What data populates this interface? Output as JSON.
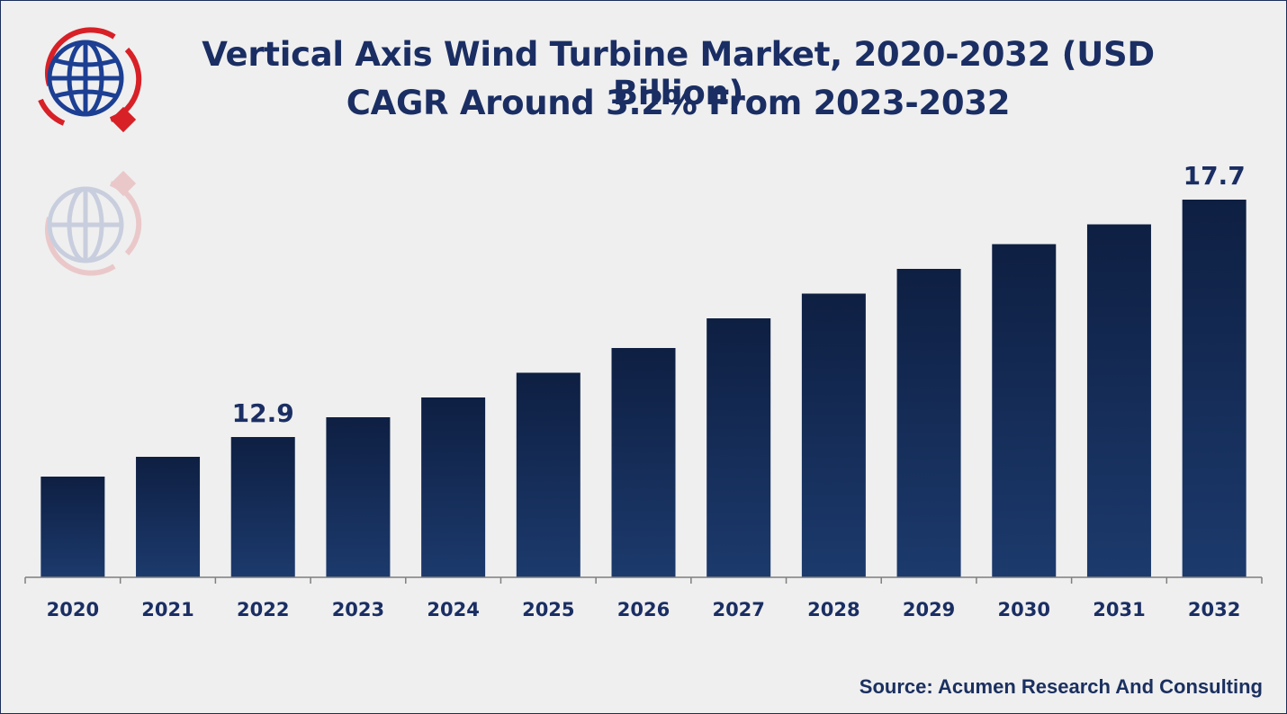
{
  "title_line1": "Vertical Axis Wind Turbine Market, 2020-2032  (USD Billion)",
  "title_line2": "CAGR Around 3.2% From 2023-2032",
  "source": "Source: Acumen Research And Consulting",
  "colors": {
    "bar_top": "#0e1f42",
    "bar_bottom": "#1c3a6d",
    "text_navy": "#1a2e63",
    "logo_red": "#d82027",
    "logo_blue": "#1c3f93"
  },
  "logo": {
    "icon": "globe-icon"
  },
  "chart_data": {
    "type": "bar",
    "title": "Vertical Axis Wind Turbine Market, 2020-2032  (USD Billion)",
    "subtitle": "CAGR Around 3.2% From 2023-2032",
    "xlabel": "",
    "ylabel": "",
    "categories": [
      "2020",
      "2021",
      "2022",
      "2023",
      "2024",
      "2025",
      "2026",
      "2027",
      "2028",
      "2029",
      "2030",
      "2031",
      "2032"
    ],
    "values": [
      12.1,
      12.5,
      12.9,
      13.3,
      13.7,
      14.2,
      14.7,
      15.3,
      15.8,
      16.3,
      16.8,
      17.2,
      17.7
    ],
    "data_labels": [
      {
        "index": 2,
        "text": "12.9"
      },
      {
        "index": 12,
        "text": "17.7"
      }
    ],
    "grid": false,
    "legend": "none"
  }
}
